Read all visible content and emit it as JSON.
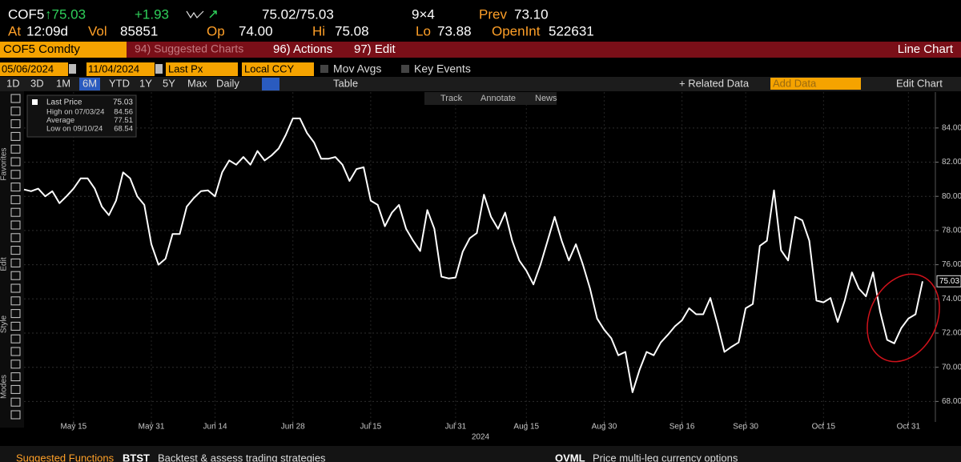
{
  "header": {
    "ticker": "COF5",
    "last": "↑75.03",
    "change": "+1.93",
    "bid_ask": "75.02/75.03",
    "size": "9×4",
    "prev_label": "Prev",
    "prev": "73.10",
    "at_label": "At",
    "time": "12:09d",
    "vol_label": "Vol",
    "vol": "85851",
    "open_label": "Op",
    "open": "74.00",
    "high_label": "Hi",
    "high": "75.08",
    "low_label": "Lo",
    "low": "73.88",
    "oi_label": "OpenInt",
    "oi": "522631"
  },
  "menu": {
    "security": "COF5 Comdty",
    "suggested": "94) Suggested Charts",
    "actions": "96) Actions",
    "edit": "97) Edit",
    "chart_type": "Line Chart"
  },
  "controls": {
    "start": "05/06/2024",
    "end": "11/04/2024",
    "field": "Last Px",
    "currency": "Local CCY",
    "mov_avgs": "Mov Avgs",
    "key_events": "Key Events",
    "periods": [
      "1D",
      "3D",
      "1M",
      "6M",
      "YTD",
      "1Y",
      "5Y",
      "Max"
    ],
    "frequency": "Daily",
    "table": "Table",
    "related": "+ Related Data",
    "add_data": "Add Data",
    "edit_chart": "Edit Chart",
    "track": "Track",
    "annotate": "Annotate",
    "news": "News"
  },
  "side_labels": [
    "Favorites",
    "Edit",
    "Style",
    "Modes"
  ],
  "chart_data": {
    "type": "line",
    "x_label": "2024",
    "series": [
      {
        "name": "Last Price",
        "color": "#ffffff",
        "values": [
          80.4,
          80.3,
          80.45,
          80.0,
          80.3,
          79.6,
          80.0,
          80.45,
          81.05,
          81.05,
          80.45,
          79.4,
          78.9,
          79.75,
          81.4,
          81.05,
          80.0,
          79.5,
          77.2,
          76.0,
          76.35,
          77.8,
          77.8,
          79.4,
          79.9,
          80.3,
          80.35,
          80.0,
          81.4,
          82.1,
          81.85,
          82.3,
          81.85,
          82.65,
          82.1,
          82.4,
          82.8,
          83.6,
          84.56,
          84.56,
          83.7,
          83.15,
          82.2,
          82.2,
          82.3,
          81.85,
          80.9,
          81.6,
          81.7,
          79.75,
          79.5,
          78.25,
          79.05,
          79.5,
          78.1,
          77.4,
          76.8,
          79.2,
          78.1,
          75.3,
          75.2,
          75.25,
          76.75,
          77.55,
          77.85,
          80.1,
          78.8,
          78.1,
          79.05,
          77.4,
          76.25,
          75.65,
          74.85,
          76.0,
          77.4,
          78.8,
          77.4,
          76.25,
          77.2,
          76.0,
          74.6,
          72.85,
          72.2,
          71.7,
          70.7,
          70.9,
          68.54,
          69.85,
          70.9,
          70.7,
          71.45,
          71.9,
          72.4,
          72.75,
          73.45,
          73.1,
          73.1,
          74.05,
          72.55,
          70.9,
          71.2,
          71.45,
          73.45,
          73.7,
          77.1,
          77.4,
          80.35,
          76.85,
          76.25,
          78.8,
          78.6,
          77.4,
          73.9,
          73.8,
          74.05,
          72.65,
          73.9,
          75.55,
          74.6,
          74.15,
          75.55,
          73.25,
          71.6,
          71.4,
          72.3,
          72.85,
          73.1,
          75.03
        ]
      }
    ],
    "xlim": [
      0,
      127
    ],
    "xticks": [
      {
        "value": 7,
        "label": "May 15"
      },
      {
        "value": 18,
        "label": "May 31"
      },
      {
        "value": 27,
        "label": "Jun 14"
      },
      {
        "value": 38,
        "label": "Jun 28"
      },
      {
        "value": 49,
        "label": "Jul 15"
      },
      {
        "value": 61,
        "label": "Jul 31"
      },
      {
        "value": 71,
        "label": "Aug 15"
      },
      {
        "value": 82,
        "label": "Aug 30"
      },
      {
        "value": 93,
        "label": "Sep 16"
      },
      {
        "value": 102,
        "label": "Sep 30"
      },
      {
        "value": 113,
        "label": "Oct 15"
      },
      {
        "value": 125,
        "label": "Oct 31"
      }
    ],
    "ylim": [
      66.8,
      86.1
    ],
    "yticks": [
      {
        "value": 68,
        "label": "68.00"
      },
      {
        "value": 70,
        "label": "70.00"
      },
      {
        "value": 72,
        "label": "72.00"
      },
      {
        "value": 74,
        "label": "74.00"
      },
      {
        "value": 76,
        "label": "76.00"
      },
      {
        "value": 78,
        "label": "78.00"
      },
      {
        "value": 80,
        "label": "80.00"
      },
      {
        "value": 82,
        "label": "82.00"
      },
      {
        "value": 84,
        "label": "84.00"
      }
    ],
    "last_tag": {
      "value": 75.03,
      "label": "75.03"
    },
    "grid": true,
    "stats": [
      {
        "label": "High on 07/03/24",
        "value": "84.56"
      },
      {
        "label": "Average",
        "value": "77.51"
      },
      {
        "label": "Low on 09/10/24",
        "value": "68.54"
      }
    ],
    "last_price": "75.03"
  },
  "footer": {
    "suggested": "Suggested Functions",
    "f1_code": "BTST",
    "f1_text": "Backtest & assess trading strategies",
    "f2_code": "OVML",
    "f2_text": "Price multi-leg currency options"
  }
}
